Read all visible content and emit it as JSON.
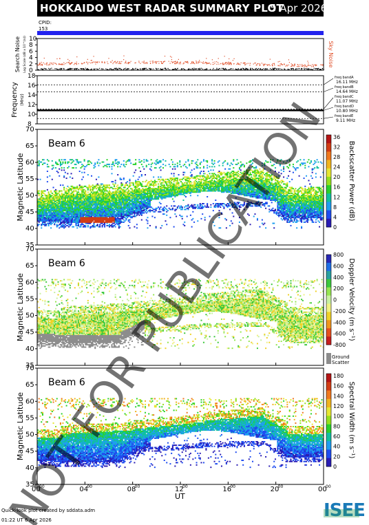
{
  "header": {
    "title": "HOKKAIDO WEST RADAR SUMMARY PLOT",
    "date": "5 Apr 2026"
  },
  "cpid": {
    "label": "CPID:",
    "value": "153"
  },
  "noise_panel": {
    "ylabel": "Search Noise",
    "ylabel_sub": "Log Scale (dB x 10^(n))",
    "yticks": [
      "0",
      "2",
      "4",
      "6",
      "8",
      "10"
    ],
    "ymin": 0,
    "ymax": 10,
    "side_label": "Sky Noise",
    "colors": {
      "sky": "#e0502a",
      "search": "#000000"
    }
  },
  "freq_panel": {
    "ylabel": "Frequency",
    "unit": "(MHz)",
    "yticks": [
      "8",
      "10",
      "12",
      "14",
      "16",
      "18"
    ],
    "ymin": 8,
    "ymax": 18,
    "bands": [
      {
        "label": "freq bandA",
        "value": "16.11 MHz",
        "f": 16.11
      },
      {
        "label": "freq bandB",
        "value": "14.64 MHz",
        "f": 14.64
      },
      {
        "label": "freq bandC",
        "value": "11.07 MHz",
        "f": 11.07
      },
      {
        "label": "freq bandD",
        "value": "10.80 MHz",
        "f": 10.8
      },
      {
        "label": "freq bandE",
        "value": "9.11 MHz",
        "f": 9.11
      }
    ],
    "operating_freq": 10.8
  },
  "range_panels": [
    {
      "beam": "Beam  6",
      "ylabel": "Magnetic Latitude",
      "yticks": [
        "35",
        "40",
        "45",
        "50",
        "55",
        "60",
        "65",
        "70"
      ],
      "cbar_label": "Backscatter Power (dB)",
      "cbar_ticks": [
        "0",
        "4",
        "8",
        "12",
        "16",
        "20",
        "24",
        "28",
        "32",
        "36"
      ],
      "cbar_colors": [
        "#ffffff",
        "#2a1cb4",
        "#1e4cf0",
        "#1e9ef0",
        "#10c0a0",
        "#2ad22a",
        "#96e01e",
        "#e6e632",
        "#f0b41e",
        "#f0781e",
        "#d23c14",
        "#b41414"
      ],
      "ground_label": "",
      "ground_sub": ""
    },
    {
      "beam": "Beam  6",
      "ylabel": "Magnetic Latitude",
      "yticks": [
        "35",
        "40",
        "45",
        "50",
        "55",
        "60",
        "65",
        "70"
      ],
      "cbar_label": "Doppler Velocity (m s⁻¹)",
      "cbar_ticks": [
        "-800",
        "-600",
        "-400",
        "-200",
        "0",
        "200",
        "400",
        "600",
        "800"
      ],
      "cbar_colors": [
        "#c81e1e",
        "#e6501e",
        "#f0961e",
        "#f0d228",
        "#f0f082",
        "#c8f0a0",
        "#96e650",
        "#3cc83c",
        "#28a0a0",
        "#1e6ee6",
        "#2828b4"
      ],
      "ground_label": "Ground",
      "ground_sub": "Scatter",
      "ground_color": "#8c8c8c"
    },
    {
      "beam": "Beam  6",
      "ylabel": "Magnetic Latitude",
      "yticks": [
        "35",
        "40",
        "45",
        "50",
        "55",
        "60",
        "65",
        "70"
      ],
      "cbar_label": "Spectral Width (m s⁻¹)",
      "cbar_ticks": [
        "0",
        "20",
        "40",
        "60",
        "80",
        "100",
        "120",
        "140",
        "160",
        "180"
      ],
      "cbar_colors": [
        "#ffffff",
        "#2a1cb4",
        "#1e4cf0",
        "#1e9ef0",
        "#10c0a0",
        "#2ad22a",
        "#96e01e",
        "#e6e632",
        "#f0b41e",
        "#f0781e",
        "#d23c14",
        "#b41414"
      ],
      "ground_label": "",
      "ground_sub": ""
    }
  ],
  "xaxis": {
    "label": "UT",
    "ticks": [
      "00",
      "04",
      "08",
      "12",
      "16",
      "20",
      "00"
    ],
    "tick_sup": "00"
  },
  "watermark": "NOT FOR PUBLICATION",
  "footer": {
    "line1": "Quick-look plot created by sddata.adm",
    "line2": "01:22 UT  6 Apr 2026"
  },
  "logo": "ISEE",
  "chart_data": {
    "type": "heatmap",
    "title": "HOKKAIDO WEST RADAR SUMMARY PLOT",
    "xlabel": "UT",
    "x_range_hours": [
      0,
      24
    ],
    "panels": [
      {
        "name": "Search Noise",
        "ylim": [
          0,
          10
        ]
      },
      {
        "name": "Frequency",
        "ylim": [
          8,
          18
        ],
        "value_mhz": 10.8
      },
      {
        "name": "Backscatter Power",
        "ylim": [
          35,
          70
        ],
        "clim": [
          0,
          36
        ],
        "unit": "dB"
      },
      {
        "name": "Doppler Velocity",
        "ylim": [
          35,
          70
        ],
        "clim": [
          -800,
          800
        ],
        "unit": "m s-1"
      },
      {
        "name": "Spectral Width",
        "ylim": [
          35,
          70
        ],
        "clim": [
          0,
          180
        ],
        "unit": "m s-1"
      }
    ]
  }
}
